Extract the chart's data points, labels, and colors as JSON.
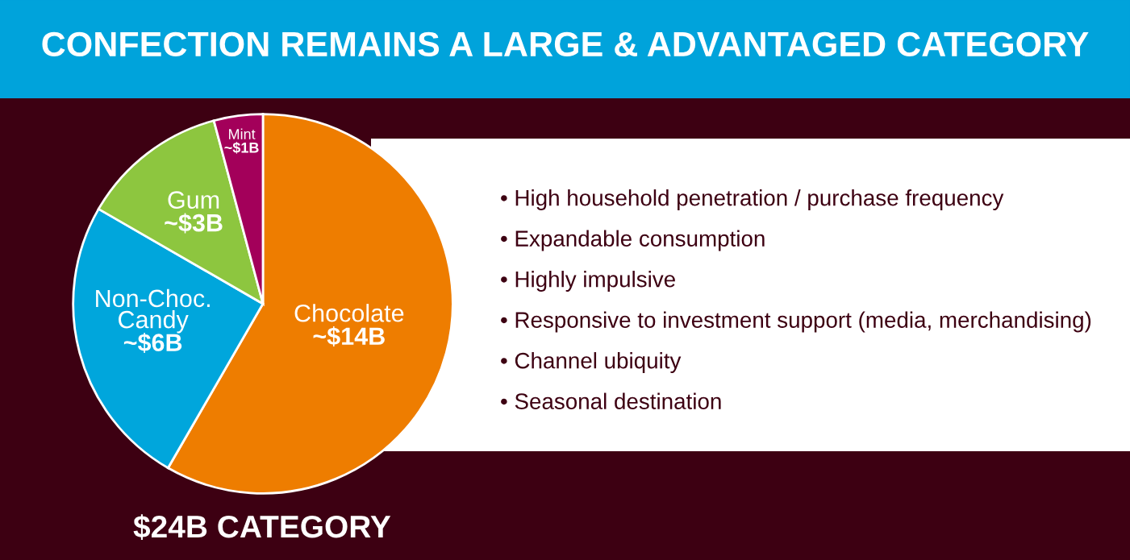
{
  "chart_data": [
    {
      "type": "pie",
      "title": "CONFECTION REMAINS A LARGE & ADVANTAGED CATEGORY",
      "categories": [
        "Chocolate",
        "Non-Choc.\nCandy",
        "Gum",
        "Mint"
      ],
      "values": [
        14,
        6,
        3,
        1
      ],
      "value_labels": [
        "~$14B",
        "~$6B",
        "~$3B",
        "~$1B"
      ],
      "colors": [
        "#ee7d00",
        "#00a6dc",
        "#8dc63f",
        "#a3005a"
      ],
      "annotations": [
        "$24B CATEGORY"
      ]
    },
    {
      "type": "other",
      "annotations": [
        "• High household penetration / purchase frequency",
        "• Expandable consumption",
        "• Highly impulsive",
        "• Responsive to investment support (media, merchandising)",
        "• Channel ubiquity",
        "• Seasonal destination"
      ]
    }
  ]
}
